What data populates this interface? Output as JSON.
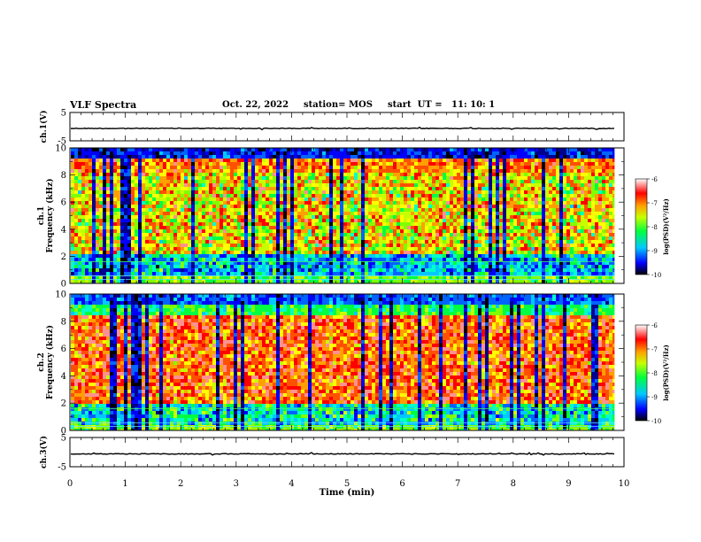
{
  "header": {
    "title": "VLF Spectra",
    "date": "Oct. 22, 2022",
    "station": "station= MOS",
    "start": "start  UT =   11: 10: 1"
  },
  "chart_data": [
    {
      "type": "line",
      "name": "ch1-waveform",
      "ylabel": "ch.1(V)",
      "ylim": [
        -5,
        5
      ],
      "yticks": [
        "5",
        "-5"
      ],
      "x": [
        0,
        10
      ],
      "values": [
        0,
        0
      ],
      "xlim": [
        0,
        10
      ]
    },
    {
      "type": "heatmap",
      "name": "ch1-spectrogram",
      "ylabel_line1": "ch.1",
      "ylabel_line2": "Frequency (kHz)",
      "ylim": [
        0,
        10
      ],
      "yticks": [
        "0",
        "2",
        "4",
        "6",
        "8",
        "10"
      ],
      "xlim": [
        0,
        10
      ],
      "data_xmax": 9.83,
      "colorbar": {
        "label": "log(PSD)(V²/Hz)",
        "min": -10,
        "max": -6,
        "ticks": [
          "-6",
          "-7",
          "-8",
          "-9",
          "-10"
        ]
      }
    },
    {
      "type": "heatmap",
      "name": "ch2-spectrogram",
      "ylabel_line1": "ch.2",
      "ylabel_line2": "Frequency (kHz)",
      "ylim": [
        0,
        10
      ],
      "yticks": [
        "0",
        "2",
        "4",
        "6",
        "8",
        "10"
      ],
      "xlim": [
        0,
        10
      ],
      "data_xmax": 9.83,
      "colorbar": {
        "label": "log(PSD)(V²/Hz)",
        "min": -10,
        "max": -6,
        "ticks": [
          "-6",
          "-7",
          "-8",
          "-9",
          "-10"
        ]
      }
    },
    {
      "type": "line",
      "name": "ch3-waveform",
      "ylabel": "ch.3(V)",
      "ylim": [
        -5,
        5
      ],
      "yticks": [
        "5",
        "-5"
      ],
      "x": [
        0,
        10
      ],
      "values": [
        0,
        0
      ],
      "xlim": [
        0,
        10
      ],
      "xlabel": "Time (min)",
      "xticks": [
        "0",
        "1",
        "2",
        "3",
        "4",
        "5",
        "6",
        "7",
        "8",
        "9",
        "10"
      ]
    }
  ]
}
